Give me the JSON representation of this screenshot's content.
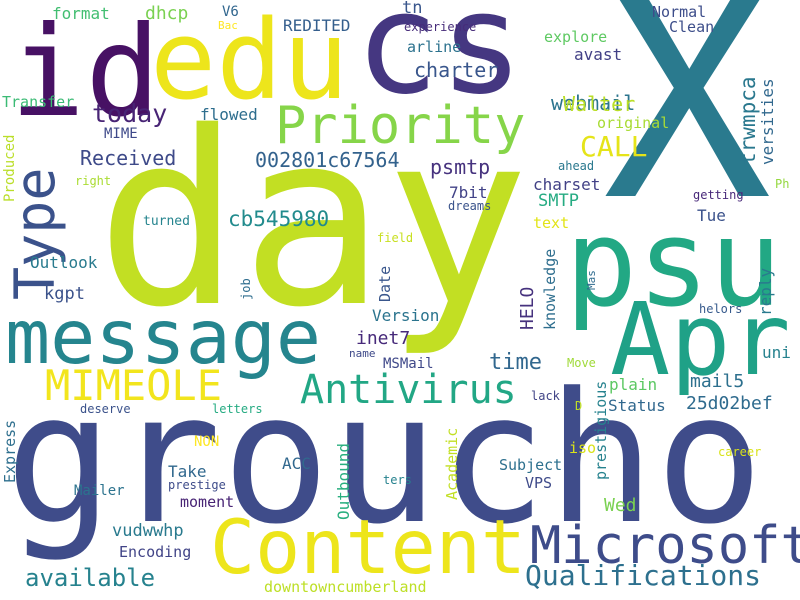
{
  "words": [
    {
      "text": "X",
      "color": "#2a7a8e",
      "vertical": false
    },
    {
      "text": "day",
      "color": "#c2df23",
      "vertical": false
    },
    {
      "text": "groucho",
      "color": "#3f4c8a",
      "vertical": false
    },
    {
      "text": "cs",
      "color": "#453781",
      "vertical": false
    },
    {
      "text": "edu",
      "color": "#ede51b",
      "vertical": false
    },
    {
      "text": "id",
      "color": "#471164",
      "vertical": false
    },
    {
      "text": "psu",
      "color": "#22a884",
      "vertical": false
    },
    {
      "text": "Apr",
      "color": "#1fa187",
      "vertical": false
    },
    {
      "text": "message",
      "color": "#25858e",
      "vertical": false
    },
    {
      "text": "Content",
      "color": "#ede51b",
      "vertical": false
    },
    {
      "text": "Priority",
      "color": "#86d549",
      "vertical": false
    },
    {
      "text": "Type",
      "color": "#3b528b",
      "vertical": true
    },
    {
      "text": "Microsoft",
      "color": "#3e4c8a",
      "vertical": false
    },
    {
      "text": "Antivirus",
      "color": "#22a785",
      "vertical": false
    },
    {
      "text": "MIMEOLE",
      "color": "#f2e51d",
      "vertical": false
    },
    {
      "text": "Qualifications",
      "color": "#2d708e",
      "vertical": false
    },
    {
      "text": "available",
      "color": "#26828e",
      "vertical": false
    },
    {
      "text": "today",
      "color": "#482475",
      "vertical": false
    },
    {
      "text": "Received",
      "color": "#3e4a89",
      "vertical": false
    },
    {
      "text": "CALL",
      "color": "#e5e419",
      "vertical": false
    },
    {
      "text": "002801c67564",
      "color": "#33628d",
      "vertical": false
    },
    {
      "text": "cb545980",
      "color": "#228b8d",
      "vertical": false
    },
    {
      "text": "webmail",
      "color": "#2b748e",
      "vertical": false
    },
    {
      "text": "trwmpca",
      "color": "#2a788e",
      "vertical": true
    },
    {
      "text": "psmtp",
      "color": "#46327e",
      "vertical": false
    },
    {
      "text": "SMTP",
      "color": "#25ab82",
      "vertical": false
    },
    {
      "text": "charter",
      "color": "#39568c",
      "vertical": false
    },
    {
      "text": "Walter",
      "color": "#bade28",
      "vertical": false
    },
    {
      "text": "tn",
      "color": "#39568c",
      "vertical": false
    },
    {
      "text": "REDITED",
      "color": "#355f8d",
      "vertical": false
    },
    {
      "text": "dhcp",
      "color": "#7ad151",
      "vertical": false
    },
    {
      "text": "format",
      "color": "#42be71",
      "vertical": false
    },
    {
      "text": "V6",
      "color": "#31668e",
      "vertical": false
    },
    {
      "text": "Bac",
      "color": "#fde725",
      "vertical": false
    },
    {
      "text": "experience",
      "color": "#472c7a",
      "vertical": false
    },
    {
      "text": "Normal",
      "color": "#3d4d8a",
      "vertical": false
    },
    {
      "text": "Clean",
      "color": "#3d4e8a",
      "vertical": false
    },
    {
      "text": "explore",
      "color": "#5ec962",
      "vertical": false
    },
    {
      "text": "arline",
      "color": "#2c728e",
      "vertical": false
    },
    {
      "text": "avast",
      "color": "#424086",
      "vertical": false
    },
    {
      "text": "original",
      "color": "#a8db34",
      "vertical": false
    },
    {
      "text": "versities",
      "color": "#31688e",
      "vertical": true
    },
    {
      "text": "Transfer",
      "color": "#3bbb75",
      "vertical": false
    },
    {
      "text": "MIME",
      "color": "#3e4989",
      "vertical": false
    },
    {
      "text": "flowed",
      "color": "#2e6e8e",
      "vertical": false
    },
    {
      "text": "Produced",
      "color": "#bade28",
      "vertical": true
    },
    {
      "text": "right",
      "color": "#aadc32",
      "vertical": false
    },
    {
      "text": "turned",
      "color": "#25848e",
      "vertical": false
    },
    {
      "text": "7bit",
      "color": "#414287",
      "vertical": false
    },
    {
      "text": "dreams",
      "color": "#3a538b",
      "vertical": false
    },
    {
      "text": "charset",
      "color": "#424186",
      "vertical": false
    },
    {
      "text": "text",
      "color": "#e2e418",
      "vertical": false
    },
    {
      "text": "ahead",
      "color": "#2a788e",
      "vertical": false
    },
    {
      "text": "getting",
      "color": "#482979",
      "vertical": false
    },
    {
      "text": "Ph",
      "color": "#95d840",
      "vertical": false
    },
    {
      "text": "Tue",
      "color": "#3b528b",
      "vertical": false
    },
    {
      "text": "Outlook",
      "color": "#297b8e",
      "vertical": false
    },
    {
      "text": "kgpt",
      "color": "#3b528b",
      "vertical": false
    },
    {
      "text": "field",
      "color": "#c8e020",
      "vertical": false
    },
    {
      "text": "job",
      "color": "#2e6d8e",
      "vertical": true
    },
    {
      "text": "Date",
      "color": "#39568c",
      "vertical": true
    },
    {
      "text": "HELO",
      "color": "#46327e",
      "vertical": true
    },
    {
      "text": "knowledge",
      "color": "#2e6e8e",
      "vertical": true
    },
    {
      "text": "Mas",
      "color": "#2f6b8e",
      "vertical": true
    },
    {
      "text": "reply",
      "color": "#297a8e",
      "vertical": true
    },
    {
      "text": "helors",
      "color": "#375a8c",
      "vertical": false
    },
    {
      "text": "Version",
      "color": "#2b748e",
      "vertical": false
    },
    {
      "text": "inet7",
      "color": "#472a7a",
      "vertical": false
    },
    {
      "text": "MSMail",
      "color": "#3f4889",
      "vertical": false
    },
    {
      "text": "uni",
      "color": "#26828e",
      "vertical": false
    },
    {
      "text": "name",
      "color": "#3e4989",
      "vertical": false
    },
    {
      "text": "time",
      "color": "#31678e",
      "vertical": false
    },
    {
      "text": "Move",
      "color": "#a0da39",
      "vertical": false
    },
    {
      "text": "mail5",
      "color": "#2d708e",
      "vertical": false
    },
    {
      "text": "plain",
      "color": "#5cc863",
      "vertical": false
    },
    {
      "text": "lack",
      "color": "#414487",
      "vertical": false
    },
    {
      "text": "D",
      "color": "#c0df25",
      "vertical": false
    },
    {
      "text": "Status",
      "color": "#31688e",
      "vertical": false
    },
    {
      "text": "25d02bef",
      "color": "#2f6b8e",
      "vertical": false
    },
    {
      "text": "deserve",
      "color": "#3b528b",
      "vertical": false
    },
    {
      "text": "letters",
      "color": "#25ab82",
      "vertical": false
    },
    {
      "text": "Express",
      "color": "#2e6f8e",
      "vertical": true
    },
    {
      "text": "NON",
      "color": "#fde725",
      "vertical": false
    },
    {
      "text": "ACC",
      "color": "#31688e",
      "vertical": false
    },
    {
      "text": "Take",
      "color": "#31688e",
      "vertical": false
    },
    {
      "text": "prestige",
      "color": "#3e4c8a",
      "vertical": false
    },
    {
      "text": "Outbound",
      "color": "#29af7f",
      "vertical": true
    },
    {
      "text": "Academic",
      "color": "#c2df23",
      "vertical": true
    },
    {
      "text": "iso",
      "color": "#d8e219",
      "vertical": false
    },
    {
      "text": "Subject",
      "color": "#2d708e",
      "vertical": false
    },
    {
      "text": "prestigious",
      "color": "#26828e",
      "vertical": true
    },
    {
      "text": "career",
      "color": "#d8e219",
      "vertical": false
    },
    {
      "text": "ters",
      "color": "#26828e",
      "vertical": false
    },
    {
      "text": "VPS",
      "color": "#3e4a89",
      "vertical": false
    },
    {
      "text": "Mailer",
      "color": "#2c738e",
      "vertical": false
    },
    {
      "text": "moment",
      "color": "#482475",
      "vertical": false
    },
    {
      "text": "Wed",
      "color": "#7ad151",
      "vertical": false
    },
    {
      "text": "vudwwhp",
      "color": "#297a8e",
      "vertical": false
    },
    {
      "text": "Encoding",
      "color": "#414487",
      "vertical": false
    },
    {
      "text": "downtowncumberland",
      "color": "#bddf26",
      "vertical": false
    }
  ]
}
